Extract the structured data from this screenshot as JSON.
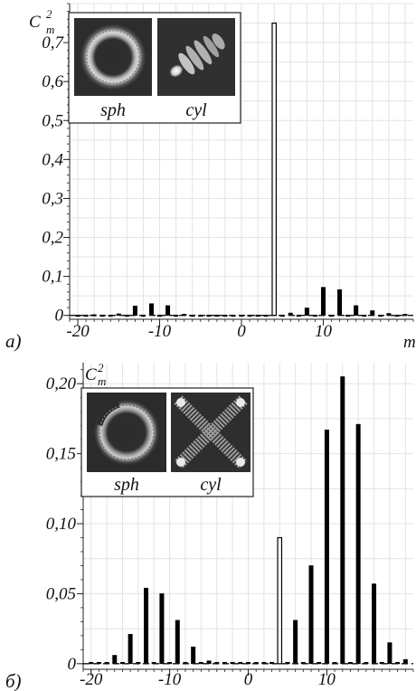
{
  "chart_data": [
    {
      "type": "bar",
      "panel_label": "a)",
      "ylabel": "C",
      "ylabel_sub": "m",
      "ylabel_sup": "2",
      "xlabel": "m",
      "xlim": [
        -21,
        21
      ],
      "ylim": [
        -0.01,
        0.8
      ],
      "x_ticks": [
        -20,
        -10,
        0,
        10
      ],
      "x_tick_labels": [
        "-20",
        "-10",
        "0",
        "10"
      ],
      "y_ticks": [
        0,
        0.1,
        0.2,
        0.3,
        0.4,
        0.5,
        0.6,
        0.7
      ],
      "y_tick_labels": [
        "0",
        "0,1",
        "0,2",
        "0,3",
        "0,4",
        "0,5",
        "0,6",
        "0,7"
      ],
      "grid": true,
      "highlight_m": 4,
      "m": [
        -20,
        -19,
        -18,
        -17,
        -16,
        -15,
        -14,
        -13,
        -12,
        -11,
        -10,
        -9,
        -8,
        -7,
        -6,
        -5,
        -4,
        -3,
        -2,
        -1,
        0,
        1,
        2,
        3,
        4,
        5,
        6,
        7,
        8,
        9,
        10,
        11,
        12,
        13,
        14,
        15,
        16,
        17,
        18,
        19,
        20
      ],
      "values": [
        0.001,
        0.001,
        0.002,
        0.001,
        0.001,
        0.004,
        0.001,
        0.024,
        0.001,
        0.03,
        0.001,
        0.025,
        0.001,
        0.003,
        0.001,
        0.001,
        0.001,
        0.001,
        0.001,
        0.001,
        0.001,
        0.001,
        0.001,
        0.001,
        0.75,
        0.001,
        0.006,
        0.001,
        0.019,
        0.001,
        0.072,
        0.001,
        0.066,
        0.001,
        0.025,
        0.001,
        0.012,
        0.001,
        0.005,
        0.001,
        0.003
      ],
      "insets": [
        {
          "label": "sph",
          "pattern": "ring"
        },
        {
          "label": "cyl",
          "pattern": "diagonal-fringes"
        }
      ]
    },
    {
      "type": "bar",
      "panel_label": "б)",
      "ylabel": "C",
      "ylabel_sub": "m",
      "ylabel_sup": "2",
      "xlabel": "m",
      "xlim": [
        -21,
        21
      ],
      "ylim": [
        -0.004,
        0.215
      ],
      "x_ticks": [
        -20,
        -10,
        0,
        10
      ],
      "x_tick_labels": [
        "-20",
        "-10",
        "0",
        "10"
      ],
      "y_ticks": [
        0,
        0.05,
        0.1,
        0.15,
        0.2
      ],
      "y_tick_labels": [
        "0",
        "0,05",
        "0,10",
        "0,15",
        "0,20"
      ],
      "grid": true,
      "highlight_m": 4,
      "m": [
        -20,
        -19,
        -18,
        -17,
        -16,
        -15,
        -14,
        -13,
        -12,
        -11,
        -10,
        -9,
        -8,
        -7,
        -6,
        -5,
        -4,
        -3,
        -2,
        -1,
        0,
        1,
        2,
        3,
        4,
        5,
        6,
        7,
        8,
        9,
        10,
        11,
        12,
        13,
        14,
        15,
        16,
        17,
        18,
        19,
        20
      ],
      "values": [
        0.001,
        0.001,
        0.001,
        0.006,
        0.001,
        0.021,
        0.001,
        0.054,
        0.001,
        0.05,
        0.001,
        0.031,
        0.001,
        0.012,
        0.001,
        0.002,
        0.001,
        0.001,
        0.001,
        0.001,
        0.001,
        0.001,
        0.001,
        0.001,
        0.09,
        0.001,
        0.031,
        0.001,
        0.07,
        0.001,
        0.167,
        0.001,
        0.205,
        0.001,
        0.171,
        0.001,
        0.057,
        0.001,
        0.015,
        0.001,
        0.003
      ],
      "insets": [
        {
          "label": "sph",
          "pattern": "broken-ring"
        },
        {
          "label": "cyl",
          "pattern": "x-cross"
        }
      ]
    }
  ]
}
